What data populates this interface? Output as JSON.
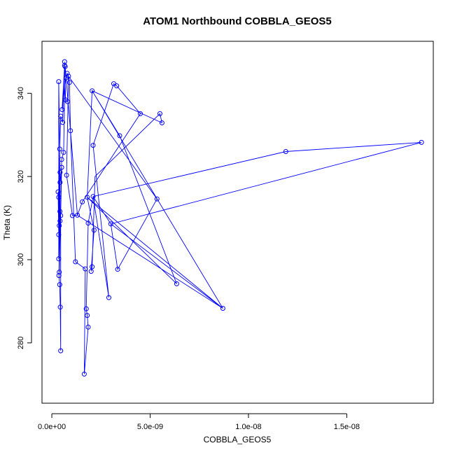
{
  "chart_data": {
    "type": "line",
    "title": "ATOM1 Northbound COBBLA_GEOS5",
    "xlabel": "COBBLA_GEOS5",
    "ylabel": "Theta (K)",
    "xlim": [
      -5e-10,
      1.94e-08
    ],
    "ylim": [
      265.5,
      352.5
    ],
    "x_ticks": [
      0,
      5e-09,
      1e-08,
      1.5e-08
    ],
    "x_tick_labels": [
      "0.0e+00",
      "5.0e-09",
      "1.0e-08",
      "1.5e-08"
    ],
    "y_ticks": [
      280,
      300,
      320,
      340
    ],
    "y_tick_labels": [
      "280",
      "300",
      "320",
      "340"
    ],
    "grid": false,
    "series": [
      {
        "name": "COBBLA_GEOS5",
        "color": "#0000ff",
        "marker": "open-circle",
        "points": [
          [
            3.5e-10,
            342.8
          ],
          [
            3.6e-10,
            296.2
          ],
          [
            4e-10,
            326.6
          ],
          [
            3.2e-10,
            316.3
          ],
          [
            4.2e-10,
            309.3
          ],
          [
            3.5e-10,
            300.2
          ],
          [
            4.3e-10,
            288.6
          ],
          [
            4.5e-10,
            278.1
          ],
          [
            4e-10,
            294.0
          ],
          [
            3.5e-10,
            306.0
          ],
          [
            4.2e-10,
            321.0
          ],
          [
            4.1e-10,
            311.6
          ],
          [
            3.8e-10,
            297.0
          ],
          [
            3.5e-10,
            315.0
          ],
          [
            4.5e-10,
            334.5
          ],
          [
            5e-10,
            322.2
          ],
          [
            3.8e-10,
            308.2
          ],
          [
            4.2e-10,
            318.6
          ],
          [
            5e-10,
            324.1
          ],
          [
            4.5e-10,
            310.6
          ],
          [
            5.5e-10,
            333.0
          ],
          [
            6.5e-10,
            346.7
          ],
          [
            5.2e-10,
            336.1
          ],
          [
            6.8e-10,
            346.4
          ],
          [
            6e-10,
            325.8
          ],
          [
            7.2e-10,
            343.7
          ],
          [
            6.5e-10,
            347.6
          ],
          [
            7.8e-10,
            344.8
          ],
          [
            7e-10,
            338.4
          ],
          [
            8e-10,
            338.0
          ],
          [
            8.5e-10,
            344.1
          ],
          [
            7.5e-10,
            320.3
          ],
          [
            9e-10,
            342.6
          ],
          [
            9.5e-10,
            331.0
          ],
          [
            1.05e-09,
            310.6
          ],
          [
            1.2e-09,
            299.5
          ],
          [
            1.3e-09,
            310.7
          ],
          [
            1.55e-09,
            313.9
          ],
          [
            1.7e-09,
            297.8
          ],
          [
            1.8e-09,
            315.0
          ],
          [
            1.85e-09,
            308.8
          ],
          [
            1.75e-09,
            288.2
          ],
          [
            1.8e-09,
            286.6
          ],
          [
            1.85e-09,
            283.8
          ],
          [
            1.65e-09,
            272.5
          ],
          [
            2e-09,
            297.2
          ],
          [
            2.05e-09,
            298.3
          ],
          [
            2.1e-09,
            315.2
          ],
          [
            2.15e-09,
            307.1
          ],
          [
            2.05e-09,
            340.6
          ],
          [
            2.1e-09,
            327.5
          ],
          [
            2.9e-09,
            290.9
          ],
          [
            3e-09,
            308.6
          ],
          [
            3.15e-09,
            342.3
          ],
          [
            3.3e-09,
            341.8
          ],
          [
            3.35e-09,
            297.7
          ],
          [
            3.45e-09,
            329.8
          ],
          [
            4.5e-09,
            335.1
          ],
          [
            5.35e-09,
            314.6
          ],
          [
            5.5e-09,
            335.1
          ],
          [
            5.6e-09,
            332.9
          ],
          [
            6.35e-09,
            294.2
          ],
          [
            8.7e-09,
            288.3
          ],
          [
            1.19e-08,
            326.0
          ],
          [
            1.88e-08,
            328.2
          ]
        ],
        "path": [
          [
            8e-10,
            338.0
          ],
          [
            7e-10,
            338.4
          ],
          [
            6.5e-10,
            347.6
          ],
          [
            5.5e-10,
            333.0
          ],
          [
            4.5e-10,
            334.5
          ],
          [
            4e-10,
            326.6
          ],
          [
            3.5e-10,
            306.0
          ],
          [
            3.5e-10,
            342.8
          ],
          [
            4.2e-10,
            321.0
          ],
          [
            4.1e-10,
            311.6
          ],
          [
            3.6e-10,
            296.2
          ],
          [
            4e-10,
            294.0
          ],
          [
            4.3e-10,
            288.6
          ],
          [
            4.5e-10,
            278.1
          ],
          [
            4.5e-10,
            310.6
          ],
          [
            5e-10,
            322.2
          ],
          [
            3.5e-10,
            315.0
          ],
          [
            3.5e-10,
            300.2
          ],
          [
            4.2e-10,
            318.6
          ],
          [
            3.8e-10,
            308.2
          ],
          [
            3.2e-10,
            316.3
          ],
          [
            3.8e-10,
            297.0
          ],
          [
            5e-10,
            324.1
          ],
          [
            6e-10,
            325.8
          ],
          [
            6.8e-10,
            346.4
          ],
          [
            6.5e-10,
            346.7
          ],
          [
            5.2e-10,
            336.1
          ],
          [
            7.2e-10,
            343.7
          ],
          [
            7.8e-10,
            344.8
          ],
          [
            8.5e-10,
            344.1
          ],
          [
            7.5e-10,
            320.3
          ],
          [
            1.05e-09,
            310.6
          ],
          [
            1.3e-09,
            310.7
          ],
          [
            1.55e-09,
            313.9
          ],
          [
            4.5e-09,
            335.1
          ],
          [
            3.3e-09,
            341.8
          ],
          [
            3.15e-09,
            342.3
          ],
          [
            2.1e-09,
            327.5
          ],
          [
            2.9e-09,
            290.9
          ],
          [
            2.1e-09,
            315.2
          ],
          [
            3e-09,
            308.6
          ],
          [
            1.88e-08,
            328.2
          ],
          [
            1.19e-08,
            326.0
          ],
          [
            2.1e-09,
            315.2
          ],
          [
            1.85e-09,
            308.8
          ],
          [
            1.75e-09,
            288.2
          ],
          [
            1.8e-09,
            286.6
          ],
          [
            1.85e-09,
            283.8
          ],
          [
            1.65e-09,
            272.5
          ],
          [
            1.7e-09,
            297.8
          ],
          [
            1.2e-09,
            299.5
          ],
          [
            9.5e-10,
            331.0
          ],
          [
            9e-10,
            342.6
          ],
          [
            8.5e-10,
            344.1
          ],
          [
            5.35e-09,
            314.6
          ],
          [
            3.35e-09,
            297.7
          ],
          [
            3e-09,
            308.6
          ],
          [
            8.7e-09,
            288.3
          ],
          [
            2.05e-09,
            340.6
          ],
          [
            5.6e-09,
            332.9
          ],
          [
            5.5e-09,
            335.1
          ],
          [
            2.2e-09,
            320.0
          ],
          [
            2.05e-09,
            298.3
          ],
          [
            2e-09,
            297.2
          ],
          [
            2.15e-09,
            307.1
          ],
          [
            1.8e-09,
            315.0
          ],
          [
            6.35e-09,
            294.2
          ],
          [
            3.45e-09,
            329.8
          ],
          [
            2.05e-09,
            340.6
          ],
          [
            1.8e-09,
            315.0
          ],
          [
            8.7e-09,
            288.3
          ],
          [
            1.3e-09,
            310.7
          ],
          [
            6.8e-10,
            346.4
          ]
        ]
      }
    ]
  }
}
